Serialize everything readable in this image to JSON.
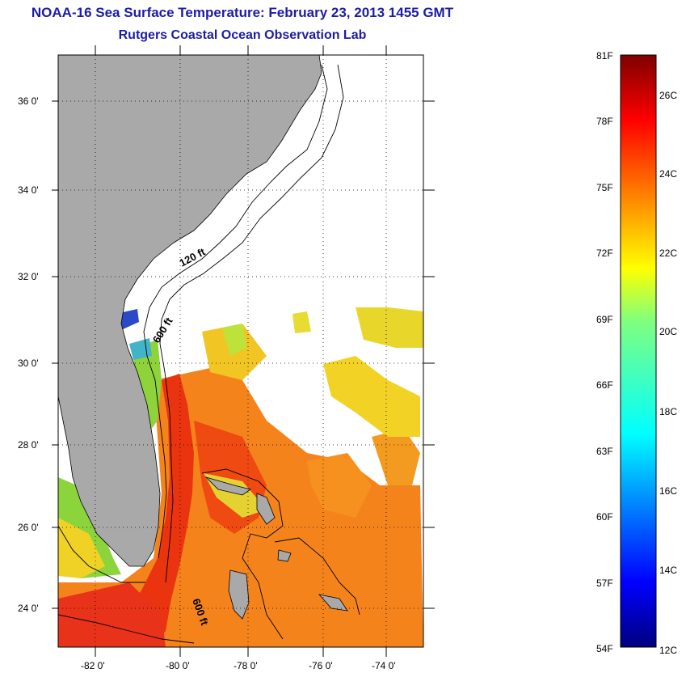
{
  "header": {
    "title": "NOAA-16 Sea Surface Temperature:  February 23, 2013 1455 GMT",
    "subtitle": "Rutgers Coastal Ocean Observation Lab"
  },
  "map": {
    "lon_ticks": [
      "-82 0'",
      "-80 0'",
      "-78 0'",
      "-76 0'",
      "-74 0'"
    ],
    "lat_ticks": [
      "36 0'",
      "34 0'",
      "32 0'",
      "30 0'",
      "28 0'",
      "26 0'",
      "24 0'"
    ],
    "contour_labels": [
      "120 ft",
      "600 ft",
      "600 ft"
    ],
    "colors": {
      "land": "#a9a9a9",
      "water_nodata": "#ffffff",
      "warm_stream": "#ee3a10",
      "orange": "#f5831c",
      "yellow": "#f1d020",
      "green": "#9fd636",
      "cold": "#1f4fd0"
    }
  },
  "colorbar": {
    "fahrenheit_labels": [
      "81F",
      "78F",
      "75F",
      "72F",
      "69F",
      "66F",
      "63F",
      "60F",
      "57F",
      "54F"
    ],
    "celsius_labels": [
      "26C",
      "24C",
      "22C",
      "20C",
      "18C",
      "16C",
      "14C",
      "12C"
    ],
    "range_c": [
      12,
      27.2
    ],
    "colormap": "jet"
  }
}
